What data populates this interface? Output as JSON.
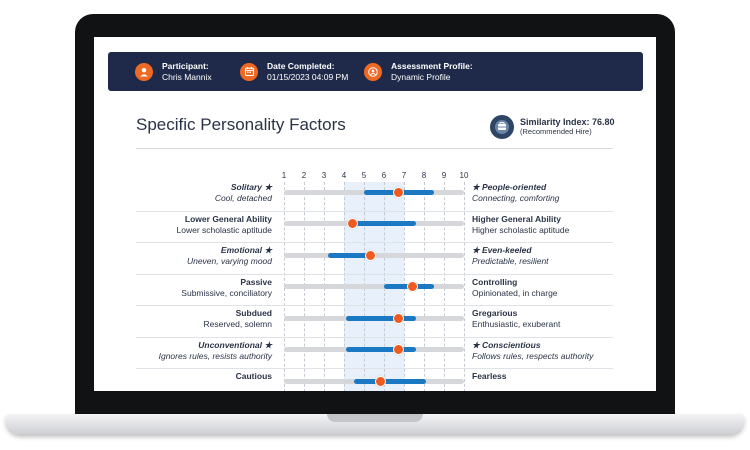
{
  "header": {
    "participant": {
      "label": "Participant:",
      "value": "Chris Mannix",
      "icon": "person-icon"
    },
    "date": {
      "label": "Date Completed:",
      "value": "01/15/2023 04:09 PM",
      "icon": "calendar-icon"
    },
    "profile": {
      "label": "Assessment Profile:",
      "value": "Dynamic Profile",
      "icon": "profile-badge-icon"
    }
  },
  "title": "Specific Personality Factors",
  "similarity": {
    "main": "Similarity Index: 76.80",
    "sub": "(Recommended Hire)",
    "icon": "hire-icon"
  },
  "colors": {
    "header": "#1f2a4a",
    "accent": "#ee6a24",
    "range": "#1b78c2",
    "band": "#e8f0fb"
  },
  "chart_data": {
    "type": "table",
    "scale": [
      "1",
      "2",
      "3",
      "4",
      "5",
      "6",
      "7",
      "8",
      "9",
      "10"
    ],
    "highlight_range": [
      4,
      7
    ],
    "rows": [
      {
        "left_name": "Solitary ★",
        "left_desc": "Cool, detached",
        "right_name": "★ People-oriented",
        "right_desc": "Connecting, comforting",
        "italic": true,
        "range": [
          5,
          8.5
        ],
        "score": 6.7
      },
      {
        "left_name": "Lower General Ability",
        "left_desc": "Lower scholastic aptitude",
        "right_name": "Higher General Ability",
        "right_desc": "Higher scholastic aptitude",
        "italic": false,
        "range": [
          4.4,
          7.6
        ],
        "score": 4.4
      },
      {
        "left_name": "Emotional ★",
        "left_desc": "Uneven, varying mood",
        "right_name": "★ Even-keeled",
        "right_desc": "Predictable, resilient",
        "italic": true,
        "range": [
          3.2,
          5.6
        ],
        "score": 5.3
      },
      {
        "left_name": "Passive",
        "left_desc": "Submissive, conciliatory",
        "right_name": "Controlling",
        "right_desc": "Opinionated, in charge",
        "italic": false,
        "range": [
          6,
          8.5
        ],
        "score": 7.4
      },
      {
        "left_name": "Subdued",
        "left_desc": "Reserved, solemn",
        "right_name": "Gregarious",
        "right_desc": "Enthusiastic, exuberant",
        "italic": false,
        "range": [
          4.1,
          7.6
        ],
        "score": 6.7
      },
      {
        "left_name": "Unconventional ★",
        "left_desc": "Ignores rules, resists authority",
        "right_name": "★ Conscientious",
        "right_desc": "Follows rules, respects authority",
        "italic": true,
        "range": [
          4.1,
          7.6
        ],
        "score": 6.7
      },
      {
        "left_name": "Cautious",
        "left_desc": "",
        "right_name": "Fearless",
        "right_desc": "",
        "italic": false,
        "range": [
          4.5,
          8.1
        ],
        "score": 5.8
      }
    ]
  }
}
